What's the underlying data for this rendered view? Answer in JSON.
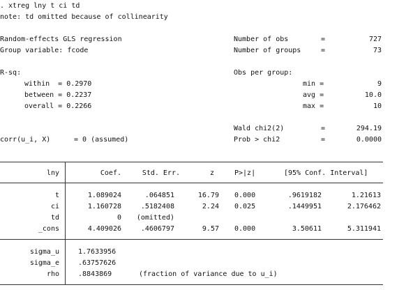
{
  "command": ". xtreg lny t ci td",
  "note": "note: td omitted because of collinearity",
  "header": {
    "model": "Random-effects GLS regression",
    "group_var": "Group variable: fcode",
    "nobs_label": "Number of obs",
    "nobs": "727",
    "ngroups_label": "Number of groups",
    "ngroups": "73",
    "eq": "=",
    "rsq_label": "R-sq:",
    "rsq_within": "within  = 0.2970",
    "rsq_between": "between = 0.2237",
    "rsq_overall": "overall = 0.2266",
    "obs_per_group": "Obs per group:",
    "min_label": "min =",
    "min": "9",
    "avg_label": "avg =",
    "avg": "10.0",
    "max_label": "max =",
    "max": "10",
    "wald_label": "Wald chi2(2)",
    "wald": "294.19",
    "prob_label": "Prob > chi2",
    "prob": "0.0000",
    "corr": "corr(u_i, X)",
    "corr_value": "= 0 (assumed)"
  },
  "table": {
    "depvar": "lny",
    "col_coef": "Coef.",
    "col_se": "Std. Err.",
    "col_z": "z",
    "col_p": "P>|z|",
    "col_ci": "[95% Conf. Interval]",
    "rows": [
      {
        "name": "t",
        "coef": "1.089024",
        "se": ".064851",
        "z": "16.79",
        "p": "0.000",
        "lo": ".9619182",
        "hi": "1.21613"
      },
      {
        "name": "ci",
        "coef": "1.160728",
        "se": ".5182408",
        "z": "2.24",
        "p": "0.025",
        "lo": ".1449951",
        "hi": "2.176462"
      },
      {
        "name": "td",
        "coef": "0",
        "se": "(omitted)",
        "z": "",
        "p": "",
        "lo": "",
        "hi": ""
      },
      {
        "name": "_cons",
        "coef": "4.409026",
        "se": ".4606797",
        "z": "9.57",
        "p": "0.000",
        "lo": "3.50611",
        "hi": "5.311941"
      }
    ],
    "sigma_u_label": "sigma_u",
    "sigma_u": "1.7633956",
    "sigma_e_label": "sigma_e",
    "sigma_e": ".63757626",
    "rho_label": "rho",
    "rho": ".8843869",
    "rho_note": "(fraction of variance due to u_i)"
  }
}
